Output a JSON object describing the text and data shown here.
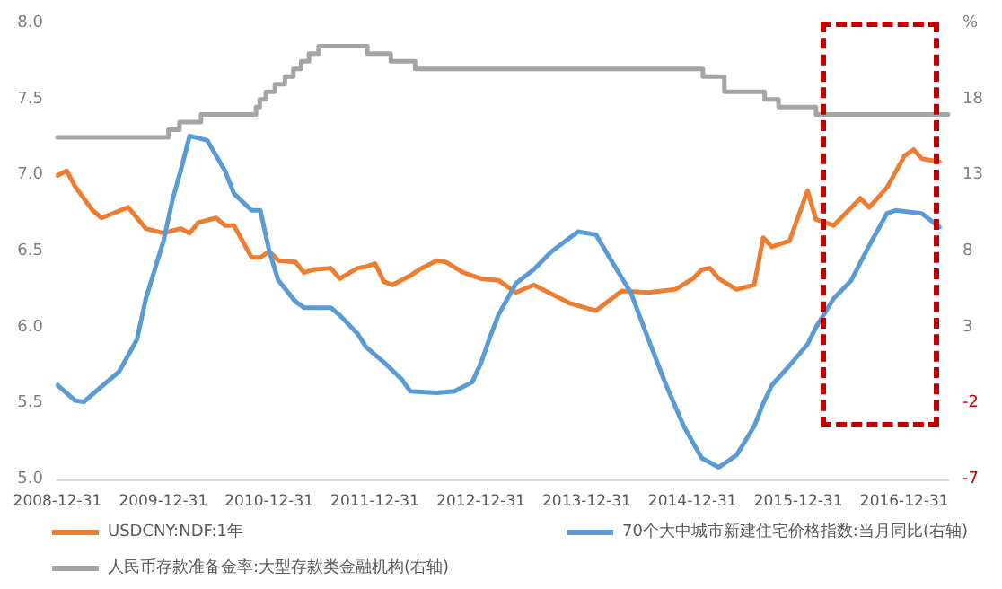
{
  "chart_data": {
    "type": "line",
    "xlim": [
      "2008-12-31",
      "2017-05-31"
    ],
    "xticks": [
      "2008-12-31",
      "2009-12-31",
      "2010-12-31",
      "2011-12-31",
      "2012-12-31",
      "2013-12-31",
      "2014-12-31",
      "2015-12-31",
      "2016-12-31"
    ],
    "ylim": [
      5,
      8
    ],
    "yticks": [
      {
        "value": 5,
        "label": "5.0"
      },
      {
        "value": 5.5,
        "label": "5.5"
      },
      {
        "value": 6,
        "label": "6.0"
      },
      {
        "value": 6.5,
        "label": "6.5"
      },
      {
        "value": 7,
        "label": "7.0"
      },
      {
        "value": 7.5,
        "label": "7.5"
      },
      {
        "value": 8,
        "label": "8.0"
      }
    ],
    "y2lim": [
      -7,
      23
    ],
    "y2ticks": [
      -7,
      -2,
      3,
      8,
      13,
      18,
      {
        "value": 23,
        "label": "%"
      }
    ],
    "grid": false,
    "legend": "bottom",
    "series": [
      {
        "name": "USDCNY:NDF:1年",
        "color": "#ed7d31",
        "x": [
          "2009-01",
          "2009-02",
          "2009-03",
          "2009-05",
          "2009-06",
          "2009-09",
          "2009-11",
          "2010-01",
          "2010-03",
          "2010-04",
          "2010-05",
          "2010-07",
          "2010-08",
          "2010-09",
          "2010-11",
          "2010-12",
          "2011-01",
          "2011-02",
          "2011-04",
          "2011-05",
          "2011-06",
          "2011-08",
          "2011-09",
          "2011-11",
          "2011-12",
          "2012-01",
          "2012-02",
          "2012-03",
          "2012-05",
          "2012-06",
          "2012-08",
          "2012-09",
          "2012-11",
          "2013-01",
          "2013-03",
          "2013-05",
          "2013-07",
          "2013-11",
          "2014-02",
          "2014-05",
          "2014-08",
          "2014-11",
          "2015-01",
          "2015-02",
          "2015-03",
          "2015-04",
          "2015-06",
          "2015-08",
          "2015-09",
          "2015-10",
          "2015-12",
          "2016-02",
          "2016-03",
          "2016-05",
          "2016-06",
          "2016-08",
          "2016-09",
          "2016-11",
          "2017-01",
          "2017-02",
          "2017-03",
          "2017-05"
        ],
        "values": [
          7.0,
          7.03,
          6.93,
          6.77,
          6.72,
          6.79,
          6.65,
          6.62,
          6.65,
          6.62,
          6.69,
          6.72,
          6.67,
          6.67,
          6.46,
          6.46,
          6.5,
          6.44,
          6.43,
          6.36,
          6.38,
          6.39,
          6.32,
          6.39,
          6.4,
          6.42,
          6.3,
          6.28,
          6.34,
          6.38,
          6.44,
          6.43,
          6.36,
          6.32,
          6.31,
          6.23,
          6.28,
          6.16,
          6.11,
          6.24,
          6.23,
          6.25,
          6.32,
          6.38,
          6.39,
          6.32,
          6.25,
          6.28,
          6.59,
          6.53,
          6.57,
          6.9,
          6.71,
          6.67,
          6.73,
          6.85,
          6.79,
          6.92,
          7.13,
          7.17,
          7.11,
          7.09
        ]
      },
      {
        "name": "70个大中城市新建住宅价格指数:当月同比(右轴)",
        "color": "#5b9bd5",
        "axis": "y2",
        "x": [
          "2009-01",
          "2009-03",
          "2009-04",
          "2009-05",
          "2009-08",
          "2009-10",
          "2009-11",
          "2010-01",
          "2010-02",
          "2010-03",
          "2010-04",
          "2010-06",
          "2010-08",
          "2010-09",
          "2010-11",
          "2010-12",
          "2011-01",
          "2011-02",
          "2011-04",
          "2011-05",
          "2011-08",
          "2011-09",
          "2011-11",
          "2011-12",
          "2012-02",
          "2012-04",
          "2012-05",
          "2012-08",
          "2012-10",
          "2012-12",
          "2013-01",
          "2013-02",
          "2013-03",
          "2013-05",
          "2013-07",
          "2013-09",
          "2013-12",
          "2014-02",
          "2014-04",
          "2014-06",
          "2014-08",
          "2014-10",
          "2014-12",
          "2015-02",
          "2015-04",
          "2015-06",
          "2015-08",
          "2015-09",
          "2015-10",
          "2015-12",
          "2016-02",
          "2016-03",
          "2016-05",
          "2016-07",
          "2016-09",
          "2016-11",
          "2016-12",
          "2017-03",
          "2017-05"
        ],
        "values": [
          -0.8,
          -1.8,
          -1.9,
          -1.4,
          0.1,
          2.2,
          4.9,
          8.7,
          11.4,
          13.3,
          15.6,
          15.3,
          13.3,
          11.8,
          10.7,
          10.7,
          8.0,
          6.1,
          4.7,
          4.3,
          4.3,
          3.8,
          2.6,
          1.7,
          0.7,
          -0.4,
          -1.2,
          -1.3,
          -1.2,
          -0.6,
          0.7,
          2.4,
          3.8,
          5.9,
          6.8,
          8.0,
          9.3,
          9.1,
          7.2,
          5.3,
          2.2,
          -0.8,
          -3.5,
          -5.6,
          -6.2,
          -5.4,
          -3.5,
          -2.0,
          -0.8,
          0.5,
          1.9,
          3.0,
          4.9,
          6.1,
          8.4,
          10.5,
          10.7,
          10.5,
          9.6
        ]
      },
      {
        "name": "人民币存款准备金率:大型存款类金融机构(右轴)",
        "color": "#a5a5a5",
        "axis": "y2",
        "type": "step",
        "x": [
          "2008-12-31",
          "2010-01-18",
          "2010-02-25",
          "2010-05-10",
          "2010-11-16",
          "2010-11-29",
          "2010-12-20",
          "2011-01-20",
          "2011-02-24",
          "2011-03-25",
          "2011-04-21",
          "2011-05-18",
          "2011-06-20",
          "2011-12-05",
          "2012-02-24",
          "2012-05-18",
          "2015-02-05",
          "2015-04-20",
          "2015-09-06",
          "2015-10-24",
          "2016-03-01",
          "2017-05-31"
        ],
        "values": [
          15.5,
          16,
          16.5,
          17,
          17.5,
          18,
          18.5,
          19,
          19.5,
          20,
          20.5,
          21,
          21.5,
          21,
          20.5,
          20,
          19.5,
          18.5,
          18,
          17.5,
          17,
          17
        ]
      }
    ]
  }
}
